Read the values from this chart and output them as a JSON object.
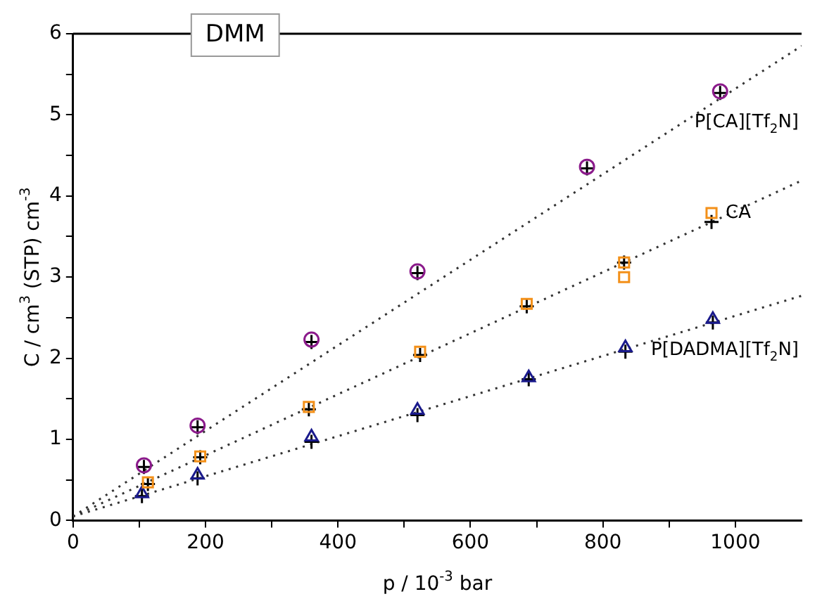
{
  "chart_data": {
    "type": "scatter",
    "xlabel": "p / 10$^{-3}$ bar",
    "ylabel": "C / cm$^{3}$ (STP) cm$^{-3}$",
    "annotations": [
      "DMM"
    ],
    "xlim": [
      0,
      1100
    ],
    "xticks": [
      0,
      {
        "value": 100,
        "label": null
      },
      200,
      {
        "value": 300,
        "label": null
      },
      400,
      {
        "value": 500,
        "label": null
      },
      600,
      {
        "value": 700,
        "label": null
      },
      800,
      {
        "value": 900,
        "label": null
      },
      1000
    ],
    "ylim": [
      0,
      6
    ],
    "yticks": [
      0,
      {
        "value": 0.5,
        "label": null
      },
      1,
      {
        "value": 1.5,
        "label": null
      },
      2,
      {
        "value": 2.5,
        "label": null
      },
      3,
      {
        "value": 3.5,
        "label": null
      },
      4,
      {
        "value": 4.5,
        "label": null
      },
      5,
      {
        "value": 5.5,
        "label": null
      },
      6
    ],
    "grid": false,
    "legend": false,
    "series": [
      {
        "name": "P[CA][Tf$_{2}$N]",
        "color": "#8b1a8b",
        "marker": "circle",
        "x": [
          107,
          188,
          360,
          520,
          776,
          977
        ],
        "values": [
          0.68,
          1.17,
          2.23,
          3.07,
          4.36,
          5.29
        ]
      },
      {
        "name": "CA",
        "color": "#f39019",
        "marker": "square",
        "x": [
          113,
          192,
          356,
          524,
          685,
          832,
          832,
          964
        ],
        "values": [
          0.47,
          0.79,
          1.4,
          2.08,
          2.67,
          3.18,
          3.0,
          3.79
        ]
      },
      {
        "name": "P[DADMA][Tf$_{2}$N]",
        "color": "#1a1a8c",
        "marker": "triangle",
        "x": [
          104,
          188,
          360,
          520,
          688,
          834,
          966
        ],
        "values": [
          0.33,
          0.56,
          1.03,
          1.36,
          1.76,
          2.13,
          2.48
        ]
      },
      {
        "color": "#000000",
        "marker": "cross",
        "x": [
          107,
          188,
          360,
          520,
          776,
          977,
          113,
          192,
          356,
          524,
          685,
          832,
          964,
          104,
          188,
          360,
          520,
          688,
          834,
          966
        ],
        "values": [
          0.66,
          1.15,
          2.2,
          3.05,
          4.34,
          5.27,
          0.45,
          0.78,
          1.37,
          2.04,
          2.64,
          3.18,
          3.68,
          0.3,
          0.52,
          0.97,
          1.3,
          1.74,
          2.08,
          2.44
        ]
      },
      {
        "type": "line",
        "line_style": "dotted",
        "marker": "none",
        "color": "#333333",
        "x": [
          0,
          1100
        ],
        "values": [
          0.05,
          5.85
        ]
      },
      {
        "type": "line",
        "line_style": "dotted",
        "marker": "none",
        "color": "#333333",
        "x": [
          0,
          1100
        ],
        "values": [
          0.05,
          4.19
        ]
      },
      {
        "type": "line",
        "line_style": "dotted",
        "marker": "none",
        "color": "#333333",
        "x": [
          0,
          1100
        ],
        "values": [
          0.05,
          2.77
        ]
      }
    ]
  }
}
